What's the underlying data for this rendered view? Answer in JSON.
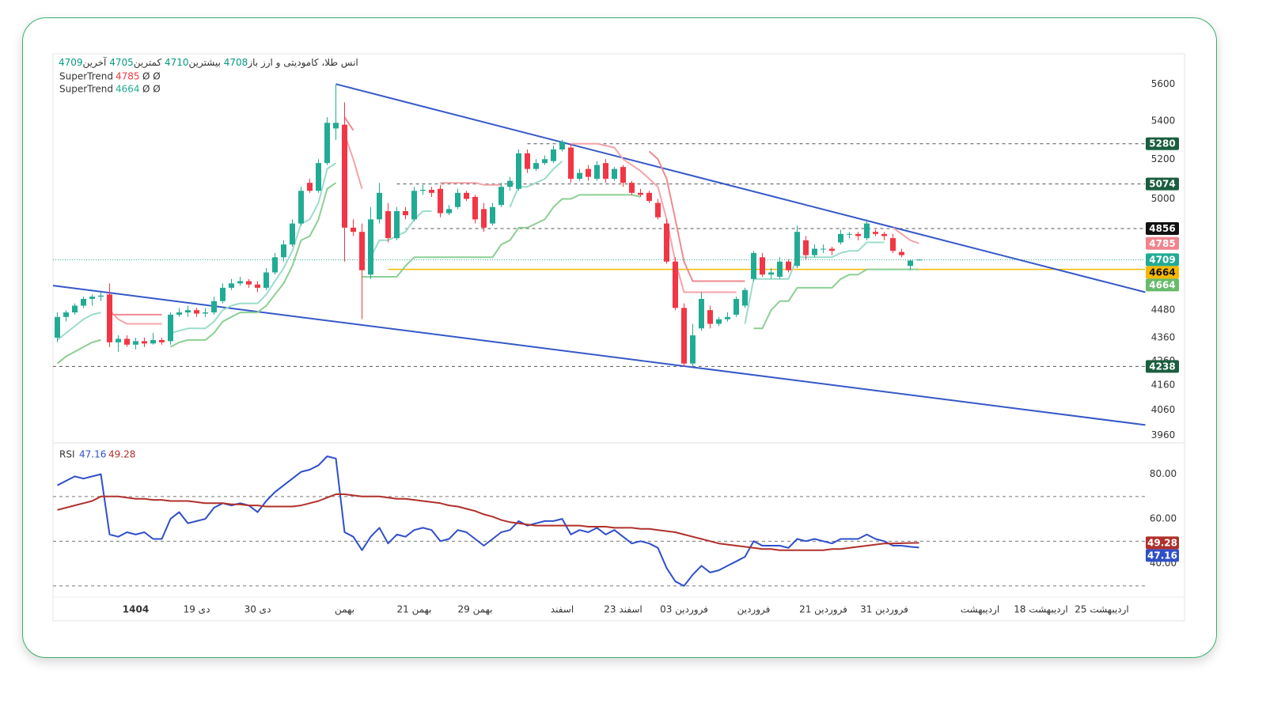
{
  "chart_data": {
    "type": "candlestick",
    "symbol": "انس طلا، کامودیتی و ارز",
    "ohlc_labels": {
      "open": "باز",
      "high": "بیشترین",
      "low": "کمترین",
      "close": "آخرین"
    },
    "log_scale": true,
    "up_color": "#22ab94",
    "down_color": "#f23645",
    "last_tag_color": "#22ab94",
    "xlim": [
      -0.5,
      129.5
    ],
    "xticks": [
      {
        "value": 9,
        "label": "1404",
        "bold": true
      },
      {
        "value": 16,
        "label": "19 دی"
      },
      {
        "value": 23,
        "label": "30 دی"
      },
      {
        "value": 33,
        "label": "بهمن"
      },
      {
        "value": 41,
        "label": "21 بهمن"
      },
      {
        "value": 48,
        "label": "29 بهمن"
      },
      {
        "value": 58,
        "label": "اسفند"
      },
      {
        "value": 65,
        "label": "23 اسفند"
      },
      {
        "value": 72,
        "label": "03 فروردین"
      },
      {
        "value": 80,
        "label": "فروردین"
      },
      {
        "value": 88,
        "label": "21 فروردین"
      },
      {
        "value": 95,
        "label": "31 فروردین"
      },
      {
        "value": 106,
        "label": "اردیبهشت"
      },
      {
        "value": 113,
        "label": "18 اردیبهشت"
      },
      {
        "value": 120,
        "label": "25 اردیبهشت"
      }
    ],
    "ylim": [
      3930,
      5770
    ],
    "yticks": [
      3960,
      4060,
      4160,
      4260,
      4360,
      4480,
      5000,
      5200,
      5400,
      5600
    ],
    "open": [
      4360,
      4450,
      4470,
      4500,
      4530,
      4540,
      4550,
      4340,
      4355,
      4330,
      4345,
      4335,
      4350,
      4345,
      4460,
      4470,
      4480,
      4465,
      4470,
      4520,
      4580,
      4600,
      4610,
      4595,
      4580,
      4650,
      4720,
      4780,
      4880,
      5080,
      5040,
      5180,
      5360,
      5380,
      4860,
      4840,
      4640,
      4900,
      4940,
      4810,
      4940,
      4900,
      5040,
      5045,
      5050,
      4930,
      4960,
      5030,
      5010,
      4950,
      4880,
      4970,
      5060,
      5050,
      5230,
      5150,
      5180,
      5190,
      5250,
      5260,
      5100,
      5150,
      5100,
      5180,
      5100,
      5160,
      5080,
      5030,
      5030,
      4980,
      4880,
      4700,
      4490,
      4250,
      4400,
      4480,
      4420,
      4440,
      4460,
      4500,
      4620,
      4720,
      4640,
      4630,
      4700,
      4680,
      4800,
      4730,
      4760,
      4760,
      4790,
      4830,
      4830,
      4810,
      4840,
      4830,
      4810,
      4745,
      4680,
      4708
    ],
    "high": [
      4470,
      4480,
      4510,
      4540,
      4550,
      4560,
      4600,
      4370,
      4370,
      4360,
      4360,
      4380,
      4360,
      4470,
      4490,
      4500,
      4490,
      4490,
      4540,
      4600,
      4620,
      4630,
      4620,
      4610,
      4670,
      4740,
      4800,
      4900,
      5060,
      5100,
      5200,
      5420,
      5600,
      5500,
      4900,
      4880,
      4960,
      5080,
      4980,
      4960,
      4960,
      5060,
      5070,
      5060,
      5070,
      4970,
      5050,
      5040,
      5020,
      4980,
      4980,
      5080,
      5110,
      5250,
      5250,
      5200,
      5220,
      5270,
      5300,
      5280,
      5150,
      5170,
      5190,
      5200,
      5160,
      5170,
      5090,
      5050,
      5040,
      5000,
      4900,
      4720,
      4510,
      4420,
      4560,
      4500,
      4450,
      4470,
      4540,
      4580,
      4750,
      4740,
      4670,
      4720,
      4710,
      4870,
      4820,
      4780,
      4780,
      4770,
      4850,
      4840,
      4840,
      4900,
      4850,
      4840,
      4830,
      4760,
      4710,
      4710
    ],
    "low": [
      4340,
      4430,
      4460,
      4490,
      4500,
      4520,
      4320,
      4300,
      4320,
      4310,
      4320,
      4330,
      4330,
      4330,
      4450,
      4450,
      4450,
      4450,
      4460,
      4510,
      4570,
      4590,
      4580,
      4560,
      4570,
      4640,
      4700,
      4770,
      4870,
      5030,
      5030,
      5170,
      5300,
      4700,
      4820,
      4440,
      4620,
      4880,
      4790,
      4800,
      4900,
      4890,
      5020,
      5010,
      4910,
      4920,
      4950,
      4990,
      4880,
      4840,
      4870,
      4960,
      5040,
      5040,
      5130,
      5140,
      5170,
      5180,
      5240,
      5080,
      5090,
      5090,
      5090,
      5080,
      5090,
      5060,
      5020,
      5010,
      4980,
      4900,
      4690,
      4480,
      4238,
      4238,
      4390,
      4400,
      4410,
      4430,
      4450,
      4490,
      4610,
      4630,
      4620,
      4620,
      4650,
      4670,
      4710,
      4720,
      4740,
      4730,
      4780,
      4810,
      4800,
      4800,
      4820,
      4800,
      4740,
      4720,
      4660,
      4705
    ],
    "close": [
      4450,
      4470,
      4500,
      4530,
      4540,
      4545,
      4340,
      4355,
      4330,
      4345,
      4335,
      4350,
      4340,
      4460,
      4470,
      4480,
      4465,
      4470,
      4520,
      4580,
      4600,
      4610,
      4595,
      4580,
      4650,
      4720,
      4780,
      4880,
      5040,
      5040,
      5180,
      5390,
      5390,
      4860,
      4840,
      4660,
      4900,
      5030,
      4810,
      4940,
      4920,
      5040,
      5045,
      5030,
      4930,
      4950,
      5030,
      5000,
      4900,
      4860,
      4960,
      5060,
      5090,
      5230,
      5150,
      5180,
      5200,
      5250,
      5290,
      5100,
      5130,
      5110,
      5170,
      5100,
      5150,
      5080,
      5030,
      5020,
      4990,
      4910,
      4700,
      4490,
      4250,
      4370,
      4530,
      4420,
      4440,
      4450,
      4530,
      4570,
      4740,
      4640,
      4650,
      4700,
      4660,
      4840,
      4730,
      4760,
      4760,
      4750,
      4830,
      4830,
      4820,
      4880,
      4830,
      4820,
      4750,
      4730,
      4705,
      4709
    ],
    "supertrends": [
      {
        "name": "SuperTrend",
        "params": "Ø Ø",
        "up_color": "#9adccb",
        "down_color": "#f5a3a9",
        "tag_color": "#f0848c",
        "values": [
          4350,
          4380,
          4410,
          4440,
          4460,
          4470,
          4480,
          4440,
          4420,
          4420,
          4420,
          4420,
          4420,
          4380,
          4390,
          4400,
          4400,
          4400,
          4430,
          4480,
          4500,
          4510,
          4510,
          4510,
          4550,
          4610,
          4670,
          4750,
          4880,
          4900,
          4980,
          5150,
          5180,
          5330,
          5200,
          5050,
          4720,
          4800,
          4800,
          4820,
          4840,
          4900,
          4940,
          4940,
          5080,
          5080,
          5080,
          5080,
          5080,
          5070,
          5070,
          5070,
          4960,
          5060,
          5060,
          5080,
          5100,
          5150,
          5190,
          5280,
          5280,
          5280,
          5280,
          5270,
          5260,
          5200,
          5170,
          5140,
          5100,
          5060,
          4900,
          4700,
          4560,
          4560,
          4560,
          4560,
          4560,
          4560,
          4560,
          4420,
          4620,
          4620,
          4620,
          4620,
          4620,
          4720,
          4720,
          4720,
          4720,
          4720,
          4740,
          4750,
          4750,
          4790,
          4790,
          4790,
          4860,
          4830,
          4800,
          4785
        ]
      },
      {
        "name": "SuperTrend",
        "params": "Ø Ø",
        "up_color": "#8ccf93",
        "down_color": "#ef8a92",
        "tag_color": "#66bb6a",
        "values": [
          4250,
          4280,
          4300,
          4320,
          4340,
          4350,
          4460,
          4460,
          4460,
          4460,
          4460,
          4460,
          4460,
          4320,
          4340,
          4350,
          4350,
          4350,
          4380,
          4430,
          4450,
          4470,
          4470,
          4470,
          4500,
          4550,
          4600,
          4680,
          4800,
          4820,
          4900,
          5050,
          5080,
          5420,
          5350,
          4630,
          4630,
          4630,
          4630,
          4630,
          4680,
          4720,
          4720,
          4720,
          4720,
          4720,
          4720,
          4720,
          4720,
          4720,
          4720,
          4780,
          4800,
          4860,
          4860,
          4880,
          4900,
          4960,
          5000,
          5000,
          5020,
          5020,
          5020,
          5020,
          5020,
          5020,
          5020,
          5010,
          5240,
          5200,
          5100,
          4900,
          4700,
          4610,
          4610,
          4610,
          4610,
          4610,
          4610,
          4610,
          4400,
          4400,
          4480,
          4520,
          4520,
          4580,
          4580,
          4580,
          4580,
          4580,
          4620,
          4640,
          4640,
          4664,
          4664,
          4664,
          4664,
          4664,
          4664,
          4664
        ]
      }
    ],
    "levels": [
      {
        "value": 5280,
        "from": 54,
        "style": "dashed",
        "color": "#555555",
        "tag_color": "#1b5e3f"
      },
      {
        "value": 5074,
        "from": 39,
        "style": "dashed",
        "color": "#555555",
        "tag_color": "#1b5e3f"
      },
      {
        "value": 4856,
        "from": 40,
        "style": "dashed",
        "color": "#555555",
        "tag_color": "#111111"
      },
      {
        "value": 4238,
        "from": -0.5,
        "style": "dashed",
        "color": "#555555",
        "tag_color": "#1b5e3f"
      },
      {
        "value": 4664,
        "from": 38,
        "style": "solid",
        "color": "#f5b800",
        "tag_color": "#f5b800",
        "tag_text": "#111111"
      }
    ],
    "trendlines": [
      {
        "from": [
          32,
          5600
        ],
        "to": [
          125,
          4560
        ],
        "color": "#3558c8"
      },
      {
        "from": [
          -0.5,
          4590
        ],
        "to": [
          125,
          4000
        ],
        "color": "#3558c8"
      }
    ],
    "rsi": {
      "name": "RSI",
      "ylim": [
        25,
        94
      ],
      "yticks": [
        {
          "value": 40,
          "label": "40.00"
        },
        {
          "value": 60,
          "label": "60.00"
        },
        {
          "value": 80,
          "label": "80.00"
        }
      ],
      "levels": [
        30,
        50,
        70
      ],
      "series": [
        {
          "color": "#2f4fc9",
          "values": [
            75,
            77,
            79,
            78,
            79,
            80,
            53,
            52,
            54,
            53,
            54,
            51,
            51,
            60,
            63,
            58,
            59,
            60,
            65,
            67,
            66,
            67,
            66,
            63,
            68,
            72,
            75,
            78,
            81,
            82,
            84,
            88,
            87,
            54,
            52,
            46,
            52,
            56,
            49,
            53,
            52,
            55,
            56,
            55,
            50,
            51,
            55,
            54,
            51,
            48,
            51,
            54,
            55,
            59,
            57,
            58,
            59,
            59,
            60,
            53,
            55,
            54,
            56,
            53,
            55,
            52,
            49,
            50,
            49,
            47,
            38,
            32,
            30,
            35,
            39,
            36,
            37,
            39,
            41,
            43,
            50,
            48,
            48,
            48,
            47,
            51,
            50,
            51,
            50,
            49,
            51,
            51,
            51,
            53,
            51,
            50,
            48,
            48,
            47.5,
            47.16
          ]
        },
        {
          "color": "#b0302b",
          "values": [
            64,
            65,
            66,
            67,
            68,
            70,
            70,
            70,
            69.5,
            69,
            69,
            68.5,
            68.5,
            68,
            68,
            68,
            67.5,
            67,
            67,
            67,
            66.5,
            66.5,
            66,
            66,
            65.5,
            65.5,
            65.5,
            65.5,
            66,
            67,
            68,
            69.5,
            71,
            71,
            70.5,
            70,
            70,
            70,
            69.5,
            69,
            69,
            68.5,
            68,
            67.5,
            67,
            66,
            65.5,
            64.5,
            63.5,
            62,
            61,
            59.5,
            58.5,
            58,
            57.5,
            57,
            57,
            57,
            57,
            57,
            57,
            56.5,
            56.5,
            56.5,
            56,
            56,
            56,
            55.5,
            55.5,
            55,
            54.5,
            54,
            53,
            52,
            51,
            50,
            49,
            48.5,
            48,
            47.5,
            47,
            46.5,
            46.5,
            46,
            46,
            46,
            46,
            46,
            46,
            46.5,
            46.5,
            47,
            47.5,
            48,
            48.5,
            49,
            49,
            49.1,
            49.2,
            49.28
          ]
        }
      ]
    }
  }
}
